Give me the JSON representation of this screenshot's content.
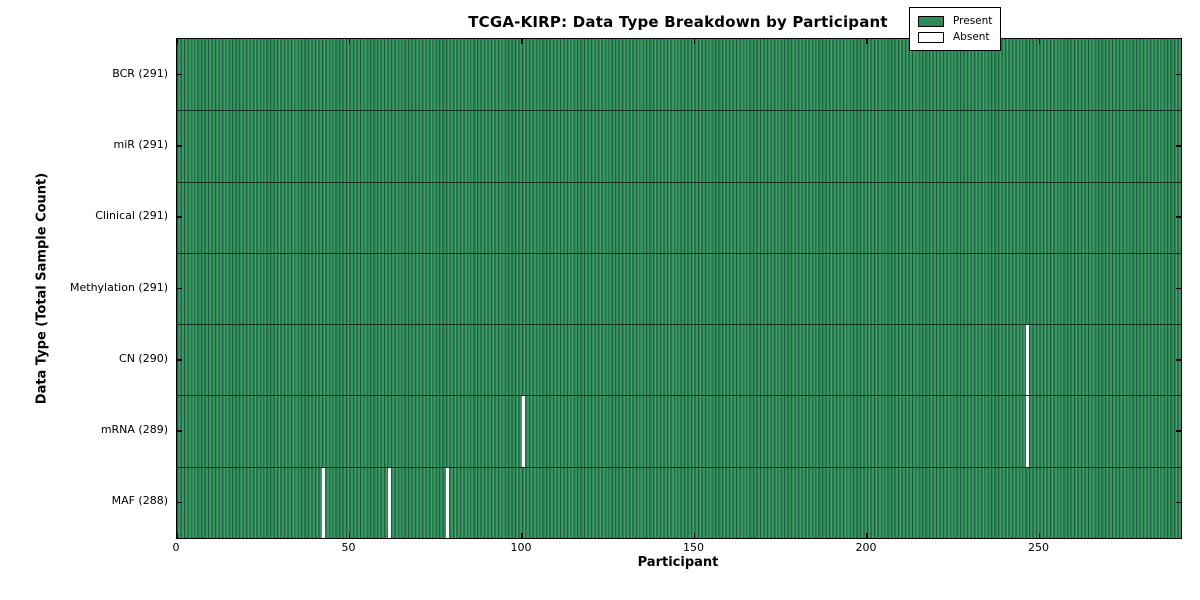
{
  "figure": {
    "title": "TCGA-KIRP: Data Type Breakdown by Participant",
    "xlabel": "Participant",
    "ylabel": "Data Type (Total Sample Count)"
  },
  "legend": {
    "position": "upper right",
    "entries": [
      {
        "label": "Present",
        "color": "#2e8b57"
      },
      {
        "label": "Absent",
        "color": "#ffffff"
      }
    ]
  },
  "colors": {
    "present_fill": "#2e8b57",
    "present_stripe_light": "#47a06d",
    "present_stripe_dark": "#1e5e3d",
    "absent_fill": "#ffffff",
    "edge": "#000000",
    "background": "#ffffff"
  },
  "chart_data": {
    "type": "heatmap",
    "title": "TCGA-KIRP: Data Type Breakdown by Participant",
    "xlabel": "Participant",
    "ylabel": "Data Type (Total Sample Count)",
    "x_ticks": [
      0,
      50,
      100,
      150,
      200,
      250
    ],
    "xlim": [
      0,
      291
    ],
    "n_participants": 291,
    "grid": false,
    "legend_entries": [
      "Present",
      "Absent"
    ],
    "legend_position": "upper right",
    "rows": [
      {
        "label": "BCR (291)",
        "data_type": "BCR",
        "total": 291,
        "absent_participants": []
      },
      {
        "label": "miR (291)",
        "data_type": "miR",
        "total": 291,
        "absent_participants": []
      },
      {
        "label": "Clinical (291)",
        "data_type": "Clinical",
        "total": 291,
        "absent_participants": []
      },
      {
        "label": "Methylation (291)",
        "data_type": "Methylation",
        "total": 291,
        "absent_participants": []
      },
      {
        "label": "CN (290)",
        "data_type": "CN",
        "total": 290,
        "absent_participants": [
          246
        ]
      },
      {
        "label": "mRNA (289)",
        "data_type": "mRNA",
        "total": 289,
        "absent_participants": [
          100,
          246
        ]
      },
      {
        "label": "MAF (288)",
        "data_type": "MAF",
        "total": 288,
        "absent_participants": [
          42,
          61,
          78
        ]
      }
    ]
  }
}
